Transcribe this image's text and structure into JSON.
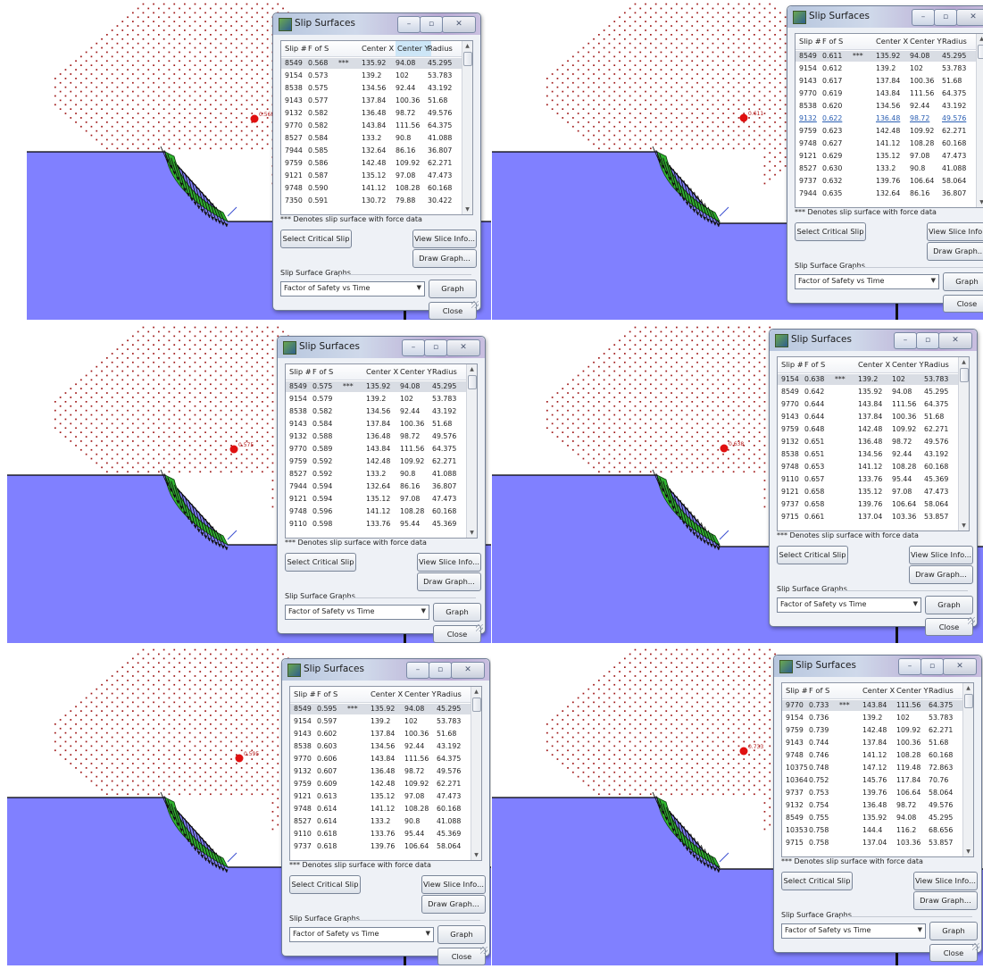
{
  "colors": {
    "soil": "#8080ff",
    "grid_dot": "#a01818",
    "slip_fill": "#2fb52f",
    "center_marker": "#e01010",
    "window_bg": "#eef1f6"
  },
  "dialog_common": {
    "title": "Slip Surfaces",
    "minimize_label": "–",
    "maximize_label": "▫",
    "close_x_label": "✕",
    "columns": [
      "Slip #",
      "F of S",
      "",
      "Center X",
      "Center Y",
      "Radius"
    ],
    "note": "*** Denotes slip surface with force data",
    "select_critical_label": "Select Critical Slip",
    "view_slice_label": "View Slice Info...",
    "draw_graph_label": "Draw Graph...",
    "graphs_group_label": "Slip Surface Graphs",
    "graph_type_value": "Factor of Safety vs Time",
    "graph_label": "Graph",
    "close_label": "Close"
  },
  "panels": [
    {
      "marker_label": "0.568",
      "rows": [
        [
          "8549",
          "0.568",
          "***",
          "135.92",
          "94.08",
          "45.295"
        ],
        [
          "9154",
          "0.573",
          "",
          "139.2",
          "102",
          "53.783"
        ],
        [
          "8538",
          "0.575",
          "",
          "134.56",
          "92.44",
          "43.192"
        ],
        [
          "9143",
          "0.577",
          "",
          "137.84",
          "100.36",
          "51.68"
        ],
        [
          "9132",
          "0.582",
          "",
          "136.48",
          "98.72",
          "49.576"
        ],
        [
          "9770",
          "0.582",
          "",
          "143.84",
          "111.56",
          "64.375"
        ],
        [
          "8527",
          "0.584",
          "",
          "133.2",
          "90.8",
          "41.088"
        ],
        [
          "7944",
          "0.585",
          "",
          "132.64",
          "86.16",
          "36.807"
        ],
        [
          "9759",
          "0.586",
          "",
          "142.48",
          "109.92",
          "62.271"
        ],
        [
          "9121",
          "0.587",
          "",
          "135.12",
          "97.08",
          "47.473"
        ],
        [
          "9748",
          "0.590",
          "",
          "141.12",
          "108.28",
          "60.168"
        ],
        [
          "7350",
          "0.591",
          "",
          "130.72",
          "79.88",
          "30.422"
        ]
      ]
    },
    {
      "marker_label": "0.611",
      "rows": [
        [
          "8549",
          "0.611",
          "***",
          "135.92",
          "94.08",
          "45.295"
        ],
        [
          "9154",
          "0.612",
          "",
          "139.2",
          "102",
          "53.783"
        ],
        [
          "9143",
          "0.617",
          "",
          "137.84",
          "100.36",
          "51.68"
        ],
        [
          "9770",
          "0.619",
          "",
          "143.84",
          "111.56",
          "64.375"
        ],
        [
          "8538",
          "0.620",
          "",
          "134.56",
          "92.44",
          "43.192"
        ],
        [
          "9132",
          "0.622",
          "",
          "136.48",
          "98.72",
          "49.576"
        ],
        [
          "9759",
          "0.623",
          "",
          "142.48",
          "109.92",
          "62.271"
        ],
        [
          "9748",
          "0.627",
          "",
          "141.12",
          "108.28",
          "60.168"
        ],
        [
          "9121",
          "0.629",
          "",
          "135.12",
          "97.08",
          "47.473"
        ],
        [
          "8527",
          "0.630",
          "",
          "133.2",
          "90.8",
          "41.088"
        ],
        [
          "9737",
          "0.632",
          "",
          "139.76",
          "106.64",
          "58.064"
        ],
        [
          "7944",
          "0.635",
          "",
          "132.64",
          "86.16",
          "36.807"
        ]
      ]
    },
    {
      "marker_label": "0.575",
      "rows": [
        [
          "8549",
          "0.575",
          "***",
          "135.92",
          "94.08",
          "45.295"
        ],
        [
          "9154",
          "0.579",
          "",
          "139.2",
          "102",
          "53.783"
        ],
        [
          "8538",
          "0.582",
          "",
          "134.56",
          "92.44",
          "43.192"
        ],
        [
          "9143",
          "0.584",
          "",
          "137.84",
          "100.36",
          "51.68"
        ],
        [
          "9132",
          "0.588",
          "",
          "136.48",
          "98.72",
          "49.576"
        ],
        [
          "9770",
          "0.589",
          "",
          "143.84",
          "111.56",
          "64.375"
        ],
        [
          "9759",
          "0.592",
          "",
          "142.48",
          "109.92",
          "62.271"
        ],
        [
          "8527",
          "0.592",
          "",
          "133.2",
          "90.8",
          "41.088"
        ],
        [
          "7944",
          "0.594",
          "",
          "132.64",
          "86.16",
          "36.807"
        ],
        [
          "9121",
          "0.594",
          "",
          "135.12",
          "97.08",
          "47.473"
        ],
        [
          "9748",
          "0.596",
          "",
          "141.12",
          "108.28",
          "60.168"
        ],
        [
          "9110",
          "0.598",
          "",
          "133.76",
          "95.44",
          "45.369"
        ]
      ]
    },
    {
      "marker_label": "0.638",
      "rows": [
        [
          "9154",
          "0.638",
          "***",
          "139.2",
          "102",
          "53.783"
        ],
        [
          "8549",
          "0.642",
          "",
          "135.92",
          "94.08",
          "45.295"
        ],
        [
          "9770",
          "0.644",
          "",
          "143.84",
          "111.56",
          "64.375"
        ],
        [
          "9143",
          "0.644",
          "",
          "137.84",
          "100.36",
          "51.68"
        ],
        [
          "9759",
          "0.648",
          "",
          "142.48",
          "109.92",
          "62.271"
        ],
        [
          "9132",
          "0.651",
          "",
          "136.48",
          "98.72",
          "49.576"
        ],
        [
          "8538",
          "0.651",
          "",
          "134.56",
          "92.44",
          "43.192"
        ],
        [
          "9748",
          "0.653",
          "",
          "141.12",
          "108.28",
          "60.168"
        ],
        [
          "9110",
          "0.657",
          "",
          "133.76",
          "95.44",
          "45.369"
        ],
        [
          "9121",
          "0.658",
          "",
          "135.12",
          "97.08",
          "47.473"
        ],
        [
          "9737",
          "0.658",
          "",
          "139.76",
          "106.64",
          "58.064"
        ],
        [
          "9715",
          "0.661",
          "",
          "137.04",
          "103.36",
          "53.857"
        ]
      ]
    },
    {
      "marker_label": "0.595",
      "rows": [
        [
          "8549",
          "0.595",
          "***",
          "135.92",
          "94.08",
          "45.295"
        ],
        [
          "9154",
          "0.597",
          "",
          "139.2",
          "102",
          "53.783"
        ],
        [
          "9143",
          "0.602",
          "",
          "137.84",
          "100.36",
          "51.68"
        ],
        [
          "8538",
          "0.603",
          "",
          "134.56",
          "92.44",
          "43.192"
        ],
        [
          "9770",
          "0.606",
          "",
          "143.84",
          "111.56",
          "64.375"
        ],
        [
          "9132",
          "0.607",
          "",
          "136.48",
          "98.72",
          "49.576"
        ],
        [
          "9759",
          "0.609",
          "",
          "142.48",
          "109.92",
          "62.271"
        ],
        [
          "9121",
          "0.613",
          "",
          "135.12",
          "97.08",
          "47.473"
        ],
        [
          "9748",
          "0.614",
          "",
          "141.12",
          "108.28",
          "60.168"
        ],
        [
          "8527",
          "0.614",
          "",
          "133.2",
          "90.8",
          "41.088"
        ],
        [
          "9110",
          "0.618",
          "",
          "133.76",
          "95.44",
          "45.369"
        ],
        [
          "9737",
          "0.618",
          "",
          "139.76",
          "106.64",
          "58.064"
        ]
      ]
    },
    {
      "marker_label": "0.733",
      "rows": [
        [
          "9770",
          "0.733",
          "***",
          "143.84",
          "111.56",
          "64.375"
        ],
        [
          "9154",
          "0.736",
          "",
          "139.2",
          "102",
          "53.783"
        ],
        [
          "9759",
          "0.739",
          "",
          "142.48",
          "109.92",
          "62.271"
        ],
        [
          "9143",
          "0.744",
          "",
          "137.84",
          "100.36",
          "51.68"
        ],
        [
          "9748",
          "0.746",
          "",
          "141.12",
          "108.28",
          "60.168"
        ],
        [
          "10375",
          "0.748",
          "",
          "147.12",
          "119.48",
          "72.863"
        ],
        [
          "10364",
          "0.752",
          "",
          "145.76",
          "117.84",
          "70.76"
        ],
        [
          "9737",
          "0.753",
          "",
          "139.76",
          "106.64",
          "58.064"
        ],
        [
          "9132",
          "0.754",
          "",
          "136.48",
          "98.72",
          "49.576"
        ],
        [
          "8549",
          "0.755",
          "",
          "135.92",
          "94.08",
          "45.295"
        ],
        [
          "10353",
          "0.758",
          "",
          "144.4",
          "116.2",
          "68.656"
        ],
        [
          "9715",
          "0.758",
          "",
          "137.04",
          "103.36",
          "53.857"
        ]
      ]
    }
  ]
}
